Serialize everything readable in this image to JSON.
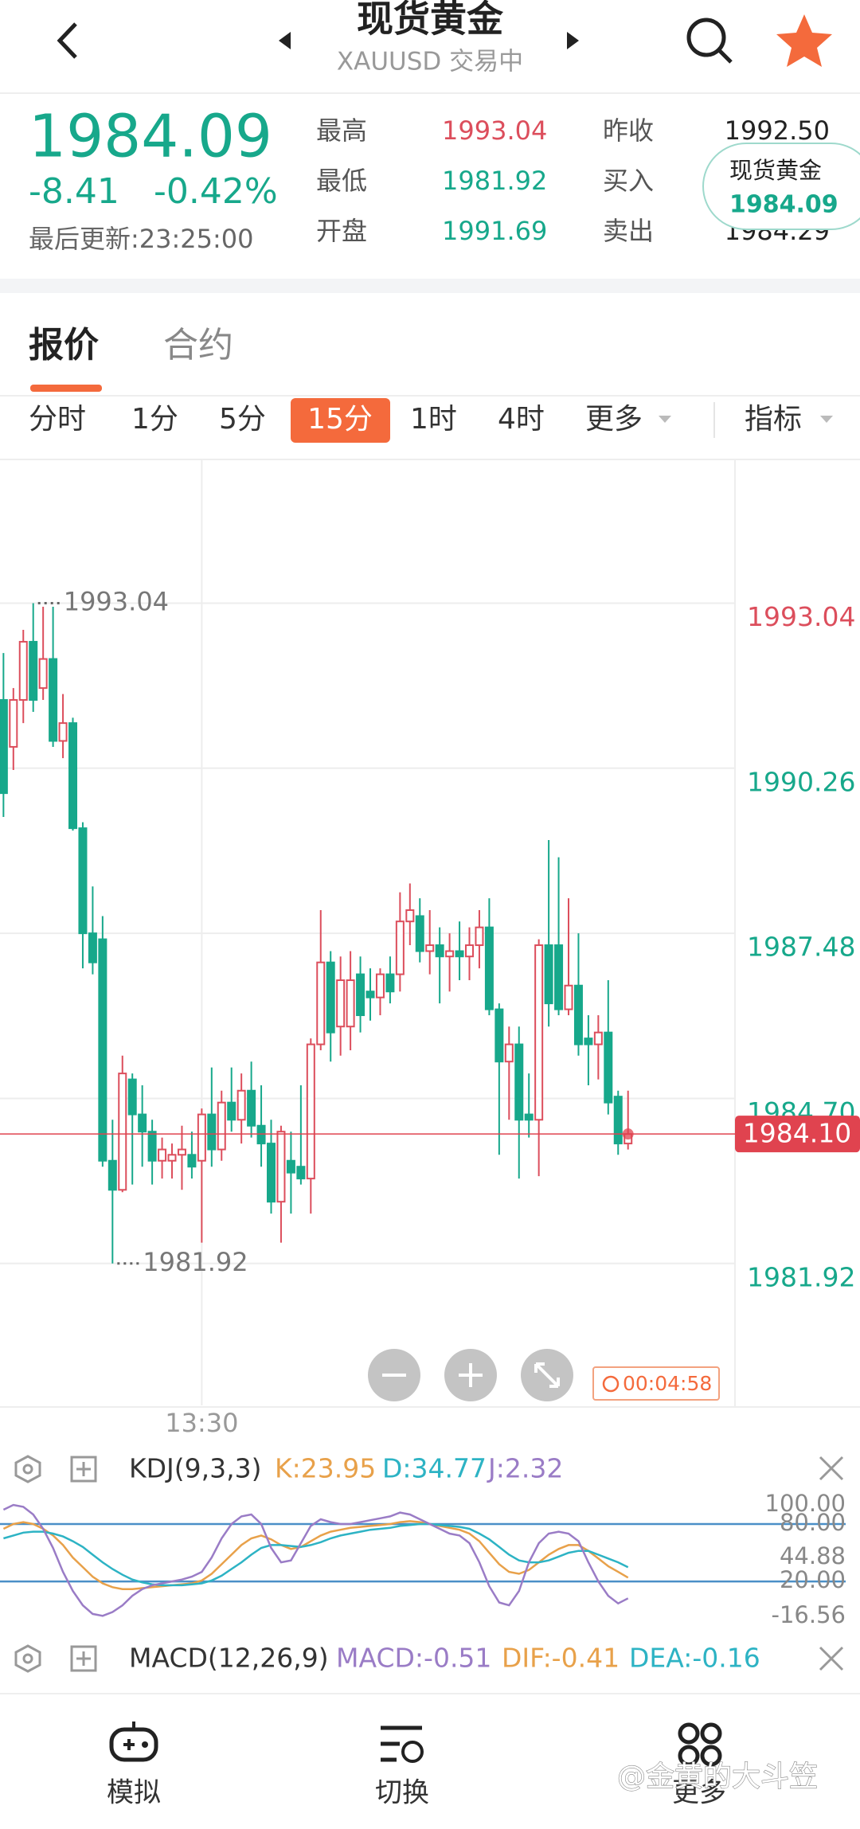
{
  "header": {
    "title": "现货黄金",
    "subtitle": "XAUUSD 交易中"
  },
  "quote": {
    "price": "1984.09",
    "change": "-8.41",
    "change_pct": "-0.42%",
    "updated": "最后更新:23:25:00",
    "stats": [
      {
        "label": "最高",
        "value": "1993.04",
        "tone": "up"
      },
      {
        "label": "最低",
        "value": "1981.92",
        "tone": "down"
      },
      {
        "label": "开盘",
        "value": "1991.69",
        "tone": "down"
      },
      {
        "label": "昨收",
        "value": "1992.50",
        "tone": "flat"
      },
      {
        "label": "买入",
        "tone": "flat"
      },
      {
        "label": "卖出",
        "value": "1984.29",
        "tone": "flat"
      }
    ],
    "popup": {
      "name": "现货黄金",
      "price": "1984.09"
    }
  },
  "tabs": [
    "报价",
    "合约"
  ],
  "periods": [
    "分时",
    "1分",
    "5分",
    "15分",
    "1时",
    "4时",
    "更多"
  ],
  "active_period": 3,
  "indicator_menu": "指标",
  "timer": "00:04:58",
  "chart_data": [
    {
      "type": "candlestick",
      "up_color": "#dc4e5c",
      "down_color": "#17a88b",
      "categories": [
        null,
        null,
        null,
        null,
        null,
        null,
        null,
        null,
        null,
        null,
        null,
        null,
        null,
        null,
        null,
        null,
        null,
        null,
        null,
        null,
        "13:30",
        null,
        null,
        null,
        null,
        null,
        null,
        null,
        null,
        null,
        null,
        null,
        null,
        null,
        null,
        null,
        null,
        null,
        null,
        null,
        null,
        null,
        null,
        null,
        null,
        null,
        null,
        null,
        null,
        null,
        null,
        null,
        null,
        null,
        null,
        null,
        null,
        null,
        null,
        null,
        null,
        null,
        null,
        null
      ],
      "open": [
        1991.41,
        1990.62,
        1991.41,
        1992.39,
        1991.61,
        1992.1,
        1990.72,
        1991.02,
        1989.25,
        1987.48,
        1987.38,
        1983.65,
        1983.16,
        1985.02,
        1984.43,
        1984.14,
        1983.65,
        1983.65,
        1983.75,
        1983.75,
        1983.65,
        1984.43,
        1983.84,
        1984.63,
        1984.34,
        1984.83,
        1984.24,
        1983.94,
        1982.96,
        1983.65,
        1983.55,
        1983.35,
        1985.61,
        1986.99,
        1985.91,
        1985.91,
        1986.79,
        1986.5,
        1986.4,
        1986.79,
        1986.79,
        1987.68,
        1987.77,
        1987.18,
        1987.28,
        1987.09,
        1987.18,
        1987.09,
        1987.28,
        1987.58,
        1986.2,
        1985.32,
        1985.61,
        1984.43,
        1984.34,
        1987.28,
        1987.28,
        1986.2,
        1986.6,
        1985.71,
        1985.61,
        1985.81,
        1984.73,
        1983.94
      ],
      "high": [
        1992.2,
        1991.61,
        1992.59,
        1993.04,
        1992.98,
        1992.98,
        1991.51,
        1991.11,
        1989.35,
        1988.27,
        1987.77,
        1984.34,
        1985.42,
        1985.12,
        1984.92,
        1984.34,
        1984.04,
        1983.94,
        1984.24,
        1984.14,
        1984.53,
        1985.22,
        1984.83,
        1985.22,
        1985.12,
        1985.32,
        1984.92,
        1984.34,
        1984.24,
        1984.14,
        1984.92,
        1985.71,
        1987.87,
        1987.18,
        1987.09,
        1987.18,
        1987.09,
        1986.89,
        1986.89,
        1987.09,
        1988.17,
        1988.32,
        1988.07,
        1987.87,
        1987.58,
        1987.48,
        1987.68,
        1987.58,
        1987.87,
        1988.07,
        1986.3,
        1985.91,
        1985.91,
        1985.12,
        1987.38,
        1989.05,
        1988.76,
        1988.07,
        1987.48,
        1986.1,
        1986.1,
        1986.69,
        1984.83,
        1984.83
      ],
      "low": [
        1989.44,
        1990.23,
        1991.02,
        1991.21,
        1991.41,
        1990.62,
        1990.43,
        1989.21,
        1986.89,
        1986.79,
        1983.55,
        1981.92,
        1983.12,
        1983.25,
        1983.55,
        1983.25,
        1983.35,
        1983.35,
        1983.16,
        1983.35,
        1982.27,
        1983.55,
        1983.65,
        1984.14,
        1983.94,
        1984.04,
        1983.55,
        1982.76,
        1982.27,
        1982.76,
        1983.25,
        1982.76,
        1985.51,
        1985.32,
        1985.42,
        1985.51,
        1985.81,
        1986.01,
        1986.1,
        1986.3,
        1986.5,
        1987.28,
        1986.99,
        1986.79,
        1986.3,
        1986.5,
        1986.69,
        1986.69,
        1986.89,
        1986.1,
        1983.75,
        1984.34,
        1983.35,
        1984.04,
        1983.39,
        1985.91,
        1986.1,
        1986.1,
        1985.42,
        1984.92,
        1985.02,
        1984.43,
        1983.75,
        1983.84
      ],
      "close": [
        1989.84,
        1991.41,
        1992.39,
        1991.41,
        1992.1,
        1990.72,
        1991.02,
        1989.25,
        1987.48,
        1986.99,
        1983.65,
        1983.16,
        1985.12,
        1984.43,
        1984.14,
        1983.65,
        1983.84,
        1983.75,
        1983.84,
        1983.55,
        1984.43,
        1983.84,
        1984.63,
        1984.34,
        1984.83,
        1984.24,
        1983.94,
        1982.96,
        1984.14,
        1983.45,
        1983.35,
        1985.61,
        1986.99,
        1985.81,
        1986.69,
        1986.69,
        1986.1,
        1986.4,
        1986.79,
        1986.5,
        1987.68,
        1987.87,
        1987.18,
        1987.28,
        1987.09,
        1987.18,
        1987.09,
        1987.28,
        1987.58,
        1986.2,
        1985.32,
        1985.61,
        1984.34,
        1984.34,
        1987.28,
        1986.3,
        1986.2,
        1986.6,
        1985.61,
        1985.61,
        1985.81,
        1984.63,
        1983.94,
        1984.1
      ],
      "ylim": [
        1979.53,
        1995.46
      ],
      "yticks": [
        1981.92,
        {
          "value": 1984.7,
          "label": "1984.70"
        },
        1987.48,
        1990.26,
        1993.04
      ],
      "ytick_colors": [
        "#17a88b",
        "#17a88b",
        "#17a88b",
        "#17a88b",
        "#dc4e5c"
      ],
      "grid": true,
      "annotations": [
        {
          "at": "high",
          "value": 1993.04,
          "label": "1993.04"
        },
        {
          "at": "low",
          "value": 1981.92,
          "label": "1981.92"
        }
      ],
      "last": {
        "value": 1984.1,
        "label": "1984.10",
        "color": "#e0434f"
      }
    },
    {
      "type": "line",
      "title": "KDJ(9,3,3)",
      "series": [
        {
          "name": "K:23.95",
          "color": "#e8a14a",
          "values": [
            75,
            80,
            82,
            80,
            75,
            68,
            58,
            45,
            35,
            25,
            18,
            14,
            12,
            12,
            13,
            14,
            15,
            16,
            17,
            18,
            21,
            28,
            38,
            48,
            58,
            65,
            68,
            64,
            58,
            54,
            56,
            62,
            68,
            72,
            74,
            76,
            77,
            78,
            79,
            80,
            82,
            83,
            82,
            80,
            78,
            76,
            74,
            70,
            62,
            50,
            38,
            30,
            28,
            32,
            40,
            48,
            54,
            58,
            58,
            52,
            44,
            36,
            30,
            23.95
          ]
        },
        {
          "name": "D:34.77",
          "color": "#2db3c4",
          "values": [
            65,
            68,
            71,
            72,
            72,
            70,
            67,
            62,
            56,
            48,
            40,
            33,
            27,
            22,
            19,
            17,
            16,
            16,
            16,
            17,
            18,
            21,
            26,
            33,
            40,
            48,
            55,
            58,
            58,
            57,
            56,
            58,
            61,
            65,
            68,
            70,
            72,
            74,
            75,
            76,
            78,
            79,
            80,
            80,
            79,
            78,
            77,
            75,
            70,
            64,
            56,
            48,
            42,
            40,
            40,
            42,
            46,
            50,
            52,
            52,
            48,
            44,
            40,
            34.77
          ]
        },
        {
          "name": "J:2.32",
          "color": "#9a7cc6",
          "values": [
            95,
            100,
            98,
            90,
            75,
            55,
            30,
            10,
            -5,
            -14,
            -16,
            -12,
            -5,
            5,
            12,
            16,
            18,
            20,
            22,
            25,
            30,
            45,
            65,
            80,
            88,
            90,
            80,
            55,
            40,
            42,
            60,
            78,
            85,
            82,
            80,
            80,
            82,
            84,
            86,
            88,
            92,
            90,
            85,
            80,
            75,
            70,
            68,
            60,
            40,
            15,
            -2,
            -5,
            10,
            40,
            60,
            70,
            72,
            70,
            62,
            40,
            20,
            5,
            -3,
            2.32
          ]
        }
      ],
      "ylim": [
        -16.56,
        100
      ],
      "yticks": [
        {
          "value": 100,
          "label": "100.00"
        },
        {
          "value": 80,
          "label": "80.00"
        },
        44.88,
        {
          "value": 20,
          "label": "20.00"
        },
        -16.56
      ],
      "ref_lines": [
        80,
        20
      ],
      "ref_color": "#4a8fc7"
    }
  ],
  "macd_header": {
    "title": "MACD(12,26,9)",
    "items": [
      {
        "text": "MACD:-0.51",
        "color": "#9a7cc6"
      },
      {
        "text": "DIF:-0.41",
        "color": "#e8a14a"
      },
      {
        "text": "DEA:-0.16",
        "color": "#2db3c4"
      }
    ]
  },
  "nav": [
    "模拟",
    "切换",
    "更多"
  ],
  "watermark": "@金黄的大斗笠"
}
